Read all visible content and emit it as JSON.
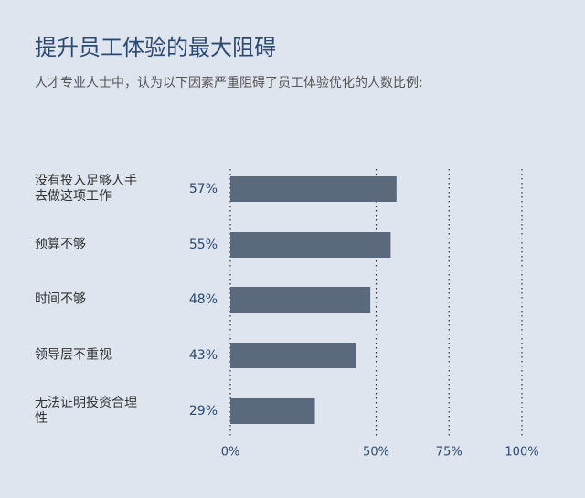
{
  "chart_data": {
    "type": "bar",
    "orientation": "horizontal",
    "title": "提升员工体验的最大阻碍",
    "subtitle": "人才专业人士中，认为以下因素严重阻碍了员工体验优化的人数比例:",
    "categories": [
      "没有投入足够人手去做这项工作",
      "预算不够",
      "时间不够",
      "领导层不重视",
      "无法证明投资合理性"
    ],
    "values": [
      57,
      55,
      48,
      43,
      29
    ],
    "value_labels": [
      "57%",
      "55%",
      "48%",
      "43%",
      "29%"
    ],
    "color": "#5a697c",
    "xlim": [
      0,
      100
    ],
    "xticks": [
      {
        "value": 0,
        "label": "0%"
      },
      {
        "value": 50,
        "label": "50%"
      },
      {
        "value": 75,
        "label": "75%"
      },
      {
        "value": 100,
        "label": "100%"
      }
    ],
    "grid": true
  }
}
